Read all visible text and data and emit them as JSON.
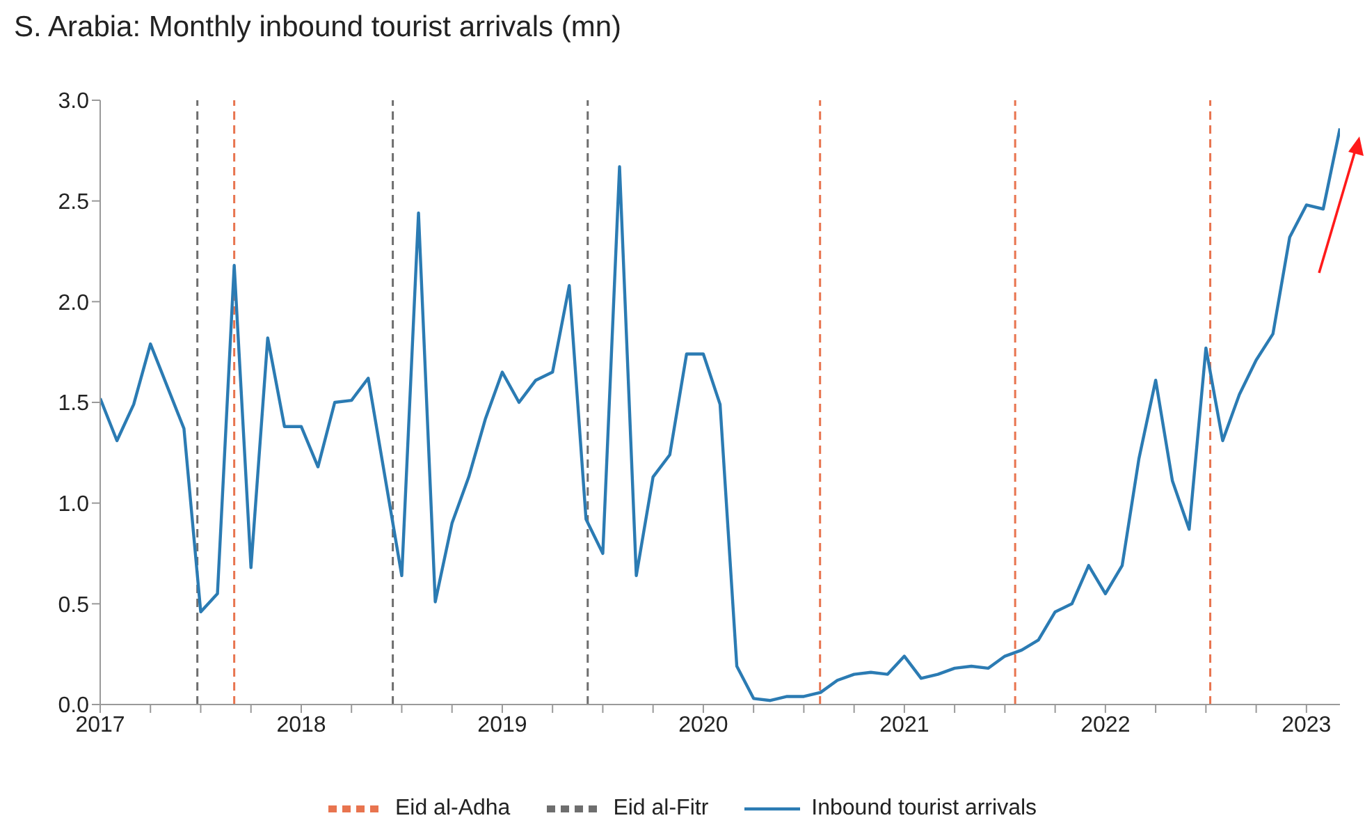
{
  "chart_data": {
    "type": "line",
    "title": "S. Arabia: Monthly inbound tourist arrivals (mn)",
    "x": [
      "2017-01",
      "2017-02",
      "2017-03",
      "2017-04",
      "2017-05",
      "2017-06",
      "2017-07",
      "2017-08",
      "2017-09",
      "2017-10",
      "2017-11",
      "2017-12",
      "2018-01",
      "2018-02",
      "2018-03",
      "2018-04",
      "2018-05",
      "2018-06",
      "2018-07",
      "2018-08",
      "2018-09",
      "2018-10",
      "2018-11",
      "2018-12",
      "2019-01",
      "2019-02",
      "2019-03",
      "2019-04",
      "2019-05",
      "2019-06",
      "2019-07",
      "2019-08",
      "2019-09",
      "2019-10",
      "2019-11",
      "2019-12",
      "2020-01",
      "2020-02",
      "2020-03",
      "2020-04",
      "2020-05",
      "2020-06",
      "2020-07",
      "2020-08",
      "2020-09",
      "2020-10",
      "2020-11",
      "2020-12",
      "2021-01",
      "2021-02",
      "2021-03",
      "2021-04",
      "2021-05",
      "2021-06",
      "2021-07",
      "2021-08",
      "2021-09",
      "2021-10",
      "2021-11",
      "2021-12",
      "2022-01",
      "2022-02",
      "2022-03",
      "2022-04",
      "2022-05",
      "2022-06",
      "2022-07",
      "2022-08",
      "2022-09",
      "2022-10",
      "2022-11",
      "2022-12",
      "2023-01",
      "2023-02",
      "2023-03"
    ],
    "series": [
      {
        "name": "Inbound tourist arrivals",
        "color": "#2b7bb3",
        "values": [
          1.52,
          1.31,
          1.49,
          1.79,
          1.58,
          1.37,
          0.46,
          0.55,
          2.18,
          0.68,
          1.82,
          1.38,
          1.38,
          1.18,
          1.5,
          1.51,
          1.62,
          1.13,
          0.64,
          2.44,
          0.51,
          0.9,
          1.13,
          1.42,
          1.65,
          1.5,
          1.61,
          1.65,
          2.08,
          0.92,
          0.75,
          2.67,
          0.64,
          1.13,
          1.24,
          1.74,
          1.74,
          1.49,
          0.19,
          0.03,
          0.02,
          0.04,
          0.04,
          0.06,
          0.12,
          0.15,
          0.16,
          0.15,
          0.24,
          0.13,
          0.15,
          0.18,
          0.19,
          0.18,
          0.24,
          0.27,
          0.32,
          0.46,
          0.5,
          0.69,
          0.55,
          0.69,
          1.22,
          1.61,
          1.11,
          0.87,
          1.77,
          1.31,
          1.54,
          1.71,
          1.84,
          2.32,
          2.48,
          2.46,
          2.86
        ]
      }
    ],
    "ref_lines": [
      {
        "axis": "x",
        "value": "2017-09-01",
        "label": "Eid al-Adha",
        "color": "#e8744f",
        "line_style": "dashed"
      },
      {
        "axis": "x",
        "value": "2020-07-31",
        "color": "#e8744f",
        "line_style": "dashed"
      },
      {
        "axis": "x",
        "value": "2021-07-20",
        "color": "#e8744f",
        "line_style": "dashed"
      },
      {
        "axis": "x",
        "value": "2022-07-09",
        "color": "#e8744f",
        "line_style": "dashed"
      },
      {
        "axis": "x",
        "value": "2017-06-25",
        "label": "Eid al-Fitr",
        "color": "#6e6e6e",
        "line_style": "dashed"
      },
      {
        "axis": "x",
        "value": "2018-06-15",
        "color": "#6e6e6e",
        "line_style": "dashed"
      },
      {
        "axis": "x",
        "value": "2019-06-04",
        "color": "#6e6e6e",
        "line_style": "dashed"
      }
    ],
    "xlim": [
      "2017-01",
      "2023-03"
    ],
    "xticks": [
      "2017",
      {
        "value": "2017-04",
        "label": null
      },
      {
        "value": "2017-07",
        "label": null
      },
      {
        "value": "2017-10",
        "label": null
      },
      "2018",
      {
        "value": "2018-04",
        "label": null
      },
      {
        "value": "2018-07",
        "label": null
      },
      {
        "value": "2018-10",
        "label": null
      },
      "2019",
      {
        "value": "2019-04",
        "label": null
      },
      {
        "value": "2019-07",
        "label": null
      },
      {
        "value": "2019-10",
        "label": null
      },
      "2020",
      {
        "value": "2020-04",
        "label": null
      },
      {
        "value": "2020-07",
        "label": null
      },
      {
        "value": "2020-10",
        "label": null
      },
      "2021",
      {
        "value": "2021-04",
        "label": null
      },
      {
        "value": "2021-07",
        "label": null
      },
      {
        "value": "2021-10",
        "label": null
      },
      "2022",
      {
        "value": "2022-04",
        "label": null
      },
      {
        "value": "2022-07",
        "label": null
      },
      {
        "value": "2022-10",
        "label": null
      },
      "2023"
    ],
    "ylim": [
      0,
      3
    ],
    "yticks": [
      {
        "value": 0,
        "label": "0.0"
      },
      {
        "value": 0.5,
        "label": "0.5"
      },
      {
        "value": 1,
        "label": "1.0"
      },
      {
        "value": 1.5,
        "label": "1.5"
      },
      {
        "value": 2,
        "label": "2.0"
      },
      {
        "value": 2.5,
        "label": "2.5"
      },
      {
        "value": 3,
        "label": "3.0"
      }
    ],
    "grid": false,
    "legend": "bottom",
    "marker": "none",
    "line_style": "solid"
  }
}
